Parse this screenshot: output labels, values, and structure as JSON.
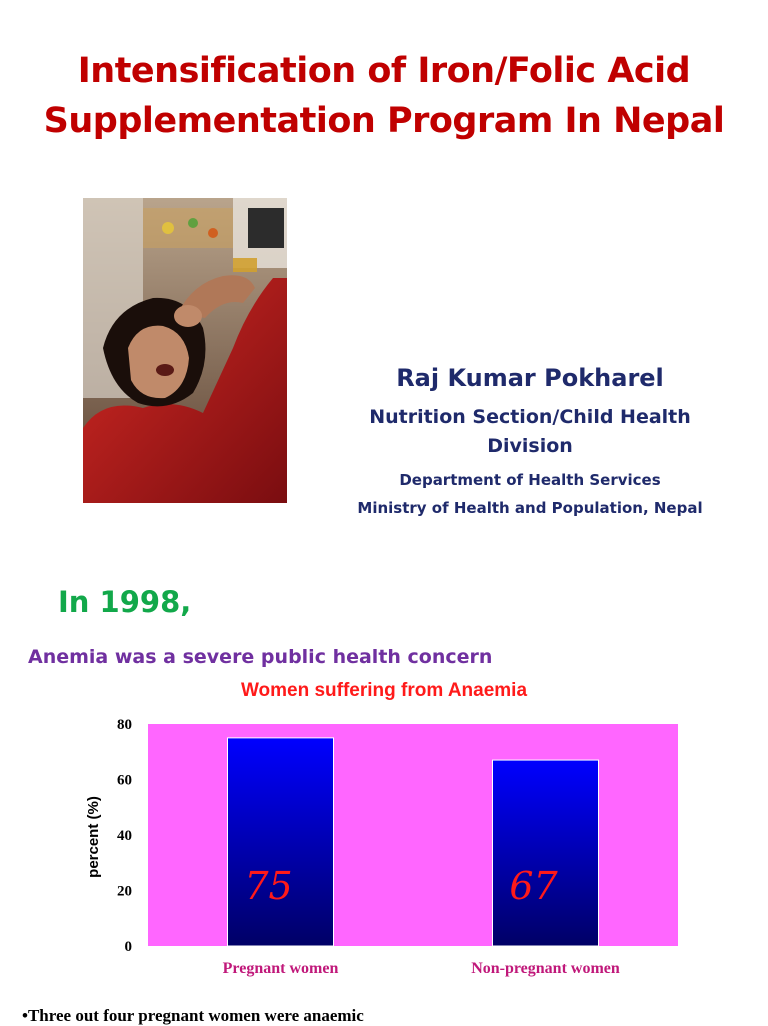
{
  "slide": {
    "title_line1": "Intensification of Iron/Folic Acid",
    "title_line2": "Supplementation Program In Nepal"
  },
  "author": {
    "name": "Raj Kumar Pokharel",
    "section": "Nutrition Section/Child Health Division",
    "department": "Department of Health Services",
    "ministry": "Ministry of Health and Population, Nepal"
  },
  "intro": {
    "year_heading": "In 1998,",
    "concern": "Anemia was a severe public health concern"
  },
  "chart_data": {
    "type": "bar",
    "title": "Women suffering from Anaemia",
    "ylabel": "percent (%)",
    "xlabel": "",
    "categories": [
      "Pregnant women",
      "Non-pregnant women"
    ],
    "values": [
      75,
      67
    ],
    "value_labels": [
      "75",
      "67"
    ],
    "yticks": [
      0,
      20,
      40,
      60,
      80
    ],
    "ylim": [
      0,
      80
    ],
    "grid": false,
    "legend": "none",
    "colors": {
      "plot_background": "#ff66ff",
      "bar_top": "#0000ff",
      "bar_bottom": "#000066",
      "value_label": "#ff1a1a",
      "category_label": "#c0187a"
    }
  },
  "notes": {
    "bullet1": "•Three out four pregnant women were anaemic"
  }
}
